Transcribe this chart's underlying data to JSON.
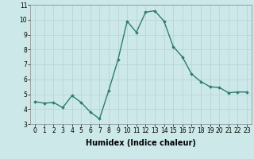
{
  "x": [
    0,
    1,
    2,
    3,
    4,
    5,
    6,
    7,
    8,
    9,
    10,
    11,
    12,
    13,
    14,
    15,
    16,
    17,
    18,
    19,
    20,
    21,
    22,
    23
  ],
  "y": [
    4.5,
    4.4,
    4.45,
    4.1,
    4.9,
    4.45,
    3.8,
    3.35,
    5.25,
    7.3,
    9.9,
    9.15,
    10.5,
    10.6,
    9.9,
    8.2,
    7.5,
    6.35,
    5.85,
    5.5,
    5.45,
    5.1,
    5.15,
    5.15
  ],
  "line_color": "#2e7d6e",
  "marker": "D",
  "markersize": 1.8,
  "linewidth": 1.0,
  "xlabel": "Humidex (Indice chaleur)",
  "xlabel_fontsize": 7,
  "xlim": [
    -0.5,
    23.5
  ],
  "ylim": [
    3,
    11
  ],
  "yticks": [
    3,
    4,
    5,
    6,
    7,
    8,
    9,
    10,
    11
  ],
  "xticks": [
    0,
    1,
    2,
    3,
    4,
    5,
    6,
    7,
    8,
    9,
    10,
    11,
    12,
    13,
    14,
    15,
    16,
    17,
    18,
    19,
    20,
    21,
    22,
    23
  ],
  "grid_color": "#b8d4d4",
  "bg_color": "#cce8e8",
  "tick_fontsize": 5.5,
  "xlabel_fontweight": "bold"
}
